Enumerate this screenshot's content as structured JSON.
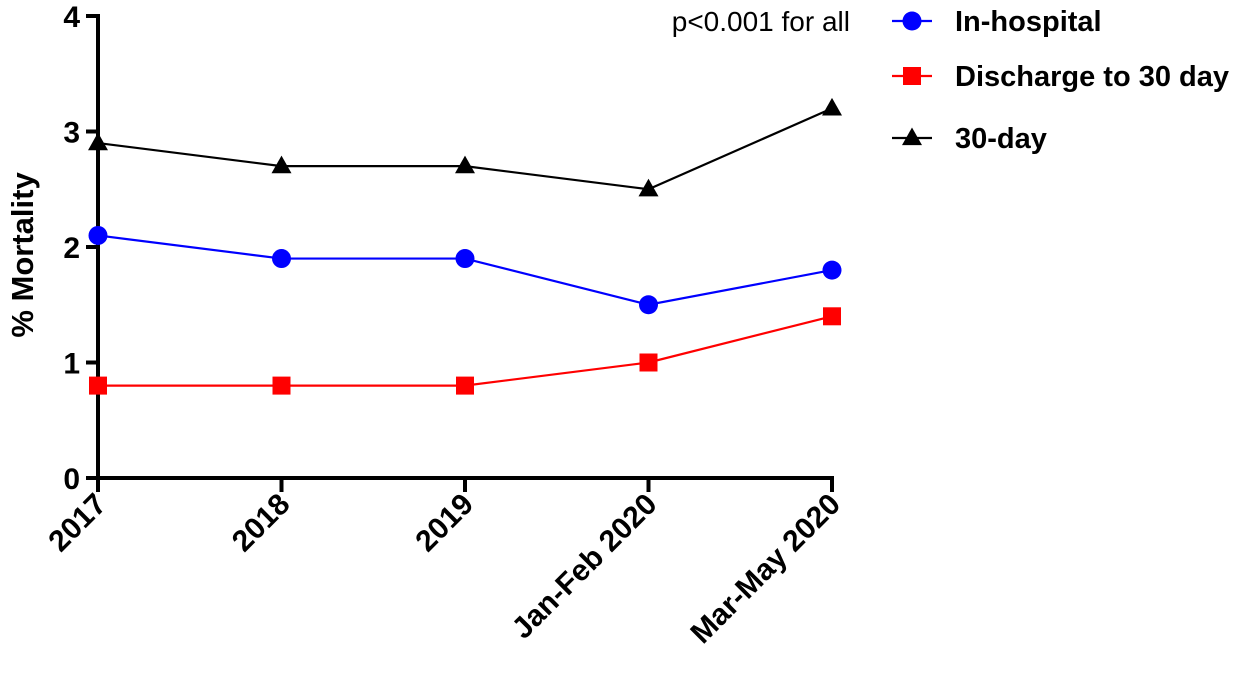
{
  "chart_data": {
    "type": "line",
    "categories": [
      "2017",
      "2018",
      "2019",
      "Jan-Feb 2020",
      "Mar-May 2020"
    ],
    "ylabel": "% Mortality",
    "ylim": [
      0,
      4
    ],
    "yticks": [
      0,
      1,
      2,
      3,
      4
    ],
    "annotation": "p<0.001 for all",
    "legend_position": "top-right",
    "grid": false,
    "series": [
      {
        "name": "In-hospital",
        "values": [
          2.1,
          1.9,
          1.9,
          1.5,
          1.8
        ],
        "color": "#0000ff",
        "marker": "circle"
      },
      {
        "name": "Discharge to 30 day",
        "values": [
          0.8,
          0.8,
          0.8,
          1.0,
          1.4
        ],
        "color": "#ff0000",
        "marker": "square"
      },
      {
        "name": "30-day",
        "values": [
          2.9,
          2.7,
          2.7,
          2.5,
          3.2
        ],
        "color": "#000000",
        "marker": "triangle"
      }
    ]
  }
}
